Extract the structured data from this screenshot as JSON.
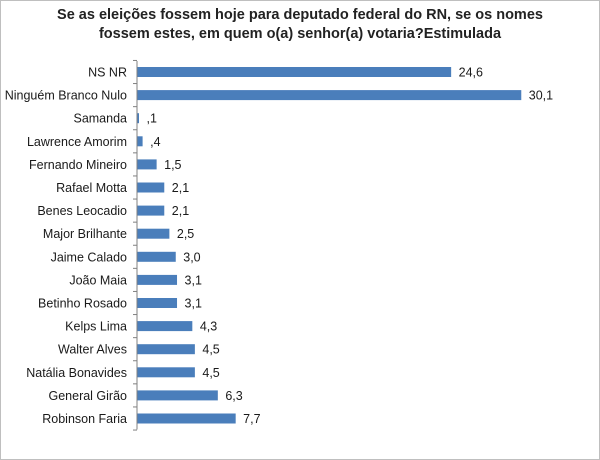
{
  "chart_data": {
    "type": "bar",
    "orientation": "horizontal",
    "title_lines": [
      "Se as eleições fossem hoje para deputado federal do RN, se os nomes",
      "fossem estes, em quem o(a)  senhor(a) votaria?Estimulada"
    ],
    "categories": [
      "NS NR",
      "Ninguém Branco Nulo",
      "Samanda",
      "Lawrence Amorim",
      "Fernando Mineiro",
      "Rafael Motta",
      "Benes Leocadio",
      "Major Brilhante",
      "Jaime Calado",
      "João Maia",
      "Betinho Rosado",
      "Kelps Lima",
      "Walter Alves",
      "Natália Bonavides",
      "General Girão",
      "Robinson Faria"
    ],
    "values": [
      24.6,
      30.1,
      0.1,
      0.4,
      1.5,
      2.1,
      2.1,
      2.5,
      3.0,
      3.1,
      3.1,
      4.3,
      4.5,
      4.5,
      6.3,
      7.7
    ],
    "value_labels": [
      "24,6",
      "30,1",
      ",1",
      ",4",
      "1,5",
      "2,1",
      "2,1",
      "2,5",
      "3,0",
      "3,1",
      "3,1",
      "4,3",
      "4,5",
      "4,5",
      "6,3",
      "7,7"
    ],
    "bar_color": "#4a7ebb",
    "grid": false,
    "legend": "none"
  }
}
